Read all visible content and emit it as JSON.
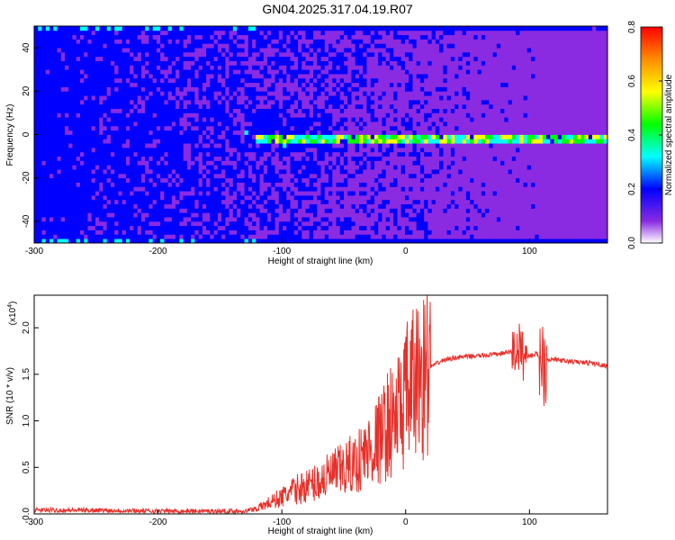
{
  "title": "GN04.2025.317.04.19.R07",
  "chart_data": [
    {
      "type": "heatmap",
      "xlabel": "Height of straight line (km)",
      "ylabel": "Frequency (Hz)",
      "xlim": [
        -300,
        163
      ],
      "ylim": [
        -50,
        50
      ],
      "x_ticks": [
        -300,
        -200,
        -100,
        0,
        100
      ],
      "y_ticks": [
        -40,
        -20,
        0,
        20,
        40
      ],
      "colorbar": {
        "label": "Normalized spectral amplitude",
        "range": [
          0.0,
          0.8
        ],
        "ticks": [
          "0.0",
          "0.2",
          "0.4",
          "0.6",
          "0.8"
        ],
        "colors": [
          "#ffffff",
          "#8a2be2",
          "#0000ff",
          "#00ffff",
          "#00ff00",
          "#ffff00",
          "#ff8c00",
          "#ff0000"
        ]
      },
      "features": [
        {
          "description_x_range": [
            -120,
            163
          ],
          "frequency": -2,
          "amplitude_range": [
            0.2,
            0.7
          ]
        }
      ]
    },
    {
      "type": "line",
      "xlabel": "Height of straight line (km)",
      "ylabel": "SNR (10 * v/v)",
      "y_multiplier": "(x10",
      "y_multiplier_exp": "4",
      "xlim": [
        -300,
        163
      ],
      "ylim": [
        0,
        2.35
      ],
      "x_ticks": [
        -300,
        -200,
        -100,
        0,
        100
      ],
      "y_ticks": [
        "0.0",
        "0.5",
        "1.0",
        "1.5",
        "2.0"
      ],
      "line_color": "#e8302a",
      "series": [
        {
          "x": [
            -300,
            -250,
            -200,
            -150,
            -130,
            -120,
            -110,
            -100,
            -90,
            -80,
            -70,
            -60,
            -50,
            -40,
            -30,
            -20,
            -15,
            -10,
            -5,
            0,
            10,
            20,
            30,
            40,
            50,
            60,
            70,
            80,
            88,
            92,
            96,
            100,
            105,
            110,
            115,
            120,
            130,
            140,
            150,
            163
          ],
          "y": [
            0.04,
            0.04,
            0.03,
            0.03,
            0.03,
            0.06,
            0.12,
            0.18,
            0.25,
            0.3,
            0.35,
            0.42,
            0.48,
            0.55,
            0.68,
            0.82,
            0.95,
            1.02,
            1.1,
            1.25,
            1.45,
            1.58,
            1.65,
            1.68,
            1.69,
            1.7,
            1.71,
            1.73,
            1.75,
            1.78,
            1.68,
            1.7,
            1.72,
            1.68,
            1.66,
            1.66,
            1.64,
            1.63,
            1.62,
            1.59
          ]
        }
      ]
    }
  ]
}
